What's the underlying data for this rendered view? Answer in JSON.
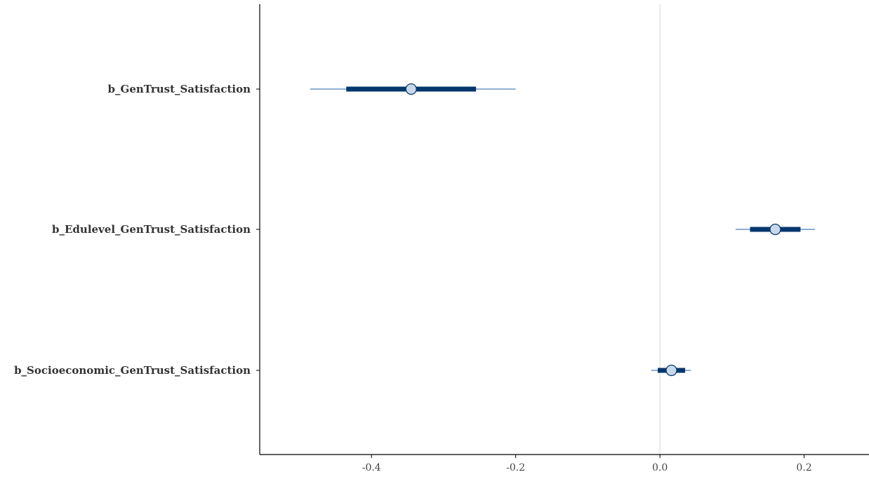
{
  "chart_data": {
    "type": "interval",
    "title": "",
    "xlabel": "",
    "ylabel": "",
    "xlim": [
      -0.555,
      0.29
    ],
    "xticks": [
      -0.4,
      -0.2,
      0.0,
      0.2
    ],
    "xtick_labels": [
      "-0.4",
      "-0.2",
      "0.0",
      "0.2"
    ],
    "reference_line": 0,
    "grid": false,
    "categories": [
      "b_GenTrust_Satisfaction",
      "b_Edulevel_GenTrust_Satisfaction",
      "b_Socioeconomic_GenTrust_Satisfaction"
    ],
    "points": [
      {
        "label": "b_GenTrust_Satisfaction",
        "estimate": -0.345,
        "inner": [
          -0.435,
          -0.255
        ],
        "outer": [
          -0.485,
          -0.2
        ]
      },
      {
        "label": "b_Edulevel_GenTrust_Satisfaction",
        "estimate": 0.16,
        "inner": [
          0.125,
          0.195
        ],
        "outer": [
          0.105,
          0.215
        ]
      },
      {
        "label": "b_Socioeconomic_GenTrust_Satisfaction",
        "estimate": 0.016,
        "inner": [
          -0.003,
          0.035
        ],
        "outer": [
          -0.012,
          0.043
        ]
      }
    ],
    "colors": {
      "inner_interval": "#04376d",
      "outer_interval": "#4a7fb5",
      "point_fill": "#c8d8ea",
      "point_stroke": "#04376d",
      "reference_line": "#dedede",
      "axis": "#000000"
    }
  }
}
